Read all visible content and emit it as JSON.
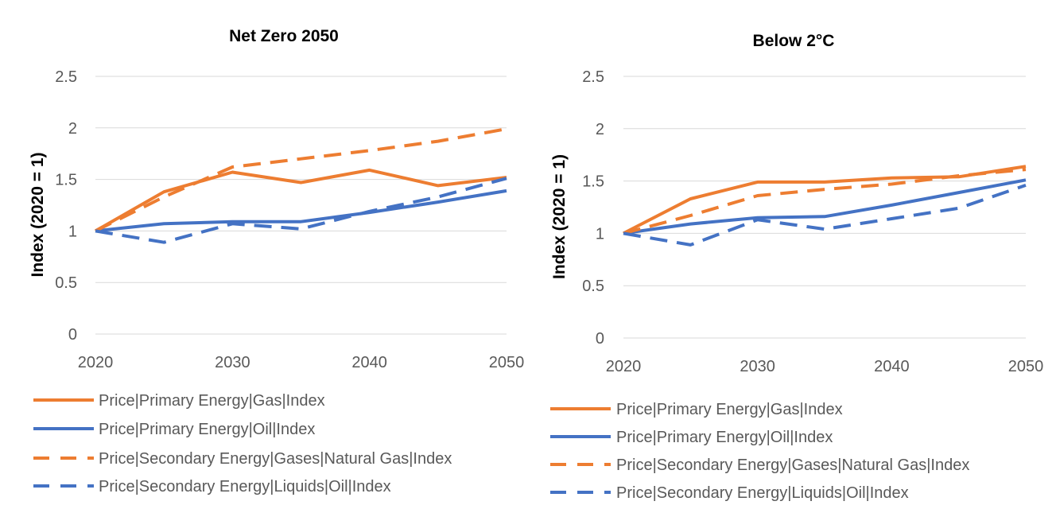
{
  "chart_data": [
    {
      "type": "line",
      "title": "Net Zero 2050",
      "ylabel": "Index (2020 = 1)",
      "xlabel": "",
      "x": [
        2020,
        2025,
        2030,
        2035,
        2040,
        2045,
        2050
      ],
      "xticks": [
        "2020",
        "2030",
        "2040",
        "2050"
      ],
      "yticks": [
        "0",
        "0.5",
        "1",
        "1.5",
        "2",
        "2.5"
      ],
      "ylim": [
        0,
        2.5
      ],
      "xlim": [
        2020,
        2050
      ],
      "grid": "horizontal",
      "legend_position": "bottom",
      "series": [
        {
          "name": "Price|Primary Energy|Gas|Index",
          "color": "#ED7D31",
          "dash": "solid",
          "values": [
            1.0,
            1.38,
            1.57,
            1.47,
            1.59,
            1.44,
            1.52
          ]
        },
        {
          "name": "Price|Primary Energy|Oil|Index",
          "color": "#4472C4",
          "dash": "solid",
          "values": [
            1.0,
            1.07,
            1.09,
            1.09,
            1.18,
            1.28,
            1.39
          ]
        },
        {
          "name": "Price|Secondary Energy|Gases|Natural Gas|Index",
          "color": "#ED7D31",
          "dash": "dashed",
          "values": [
            1.0,
            1.33,
            1.62,
            1.7,
            1.78,
            1.87,
            1.99
          ]
        },
        {
          "name": "Price|Secondary Energy|Liquids|Oil|Index",
          "color": "#4472C4",
          "dash": "dashed",
          "values": [
            1.0,
            0.89,
            1.07,
            1.02,
            1.19,
            1.33,
            1.51
          ]
        }
      ]
    },
    {
      "type": "line",
      "title": "Below 2°C",
      "ylabel": "Index (2020 = 1)",
      "xlabel": "",
      "x": [
        2020,
        2025,
        2030,
        2035,
        2040,
        2045,
        2050
      ],
      "xticks": [
        "2020",
        "2030",
        "2040",
        "2050"
      ],
      "yticks": [
        "0",
        "0.5",
        "1",
        "1.5",
        "2",
        "2.5"
      ],
      "ylim": [
        0,
        2.5
      ],
      "xlim": [
        2020,
        2050
      ],
      "grid": "horizontal",
      "legend_position": "bottom",
      "series": [
        {
          "name": "Price|Primary Energy|Gas|Index",
          "color": "#ED7D31",
          "dash": "solid",
          "values": [
            1.0,
            1.33,
            1.49,
            1.49,
            1.53,
            1.54,
            1.64
          ]
        },
        {
          "name": "Price|Primary Energy|Oil|Index",
          "color": "#4472C4",
          "dash": "solid",
          "values": [
            1.0,
            1.09,
            1.15,
            1.16,
            1.27,
            1.39,
            1.51
          ]
        },
        {
          "name": "Price|Secondary Energy|Gases|Natural Gas|Index",
          "color": "#ED7D31",
          "dash": "dashed",
          "values": [
            1.0,
            1.17,
            1.36,
            1.42,
            1.47,
            1.55,
            1.61
          ]
        },
        {
          "name": "Price|Secondary Energy|Liquids|Oil|Index",
          "color": "#4472C4",
          "dash": "dashed",
          "values": [
            1.0,
            0.89,
            1.13,
            1.04,
            1.14,
            1.24,
            1.46
          ]
        }
      ]
    }
  ]
}
